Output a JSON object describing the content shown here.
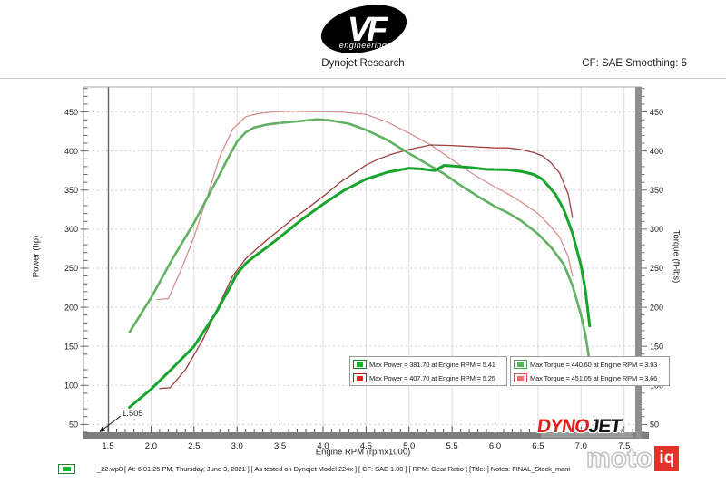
{
  "header": {
    "logo_text": "VF",
    "logo_sub": "engineering",
    "title": "Dynojet Research",
    "smoothing": "CF: SAE Smoothing: 5"
  },
  "chart_data": {
    "type": "line",
    "title": "",
    "xlabel": "Engine RPM (rpmx1000)",
    "ylabel_left": "Power (hp)",
    "ylabel_right": "Torque (ft-lbs)",
    "xlim": [
      1.215,
      7.63
    ],
    "ylim": [
      40,
      482
    ],
    "x_ticks": [
      1.5,
      2.0,
      2.5,
      3.0,
      3.5,
      4.0,
      4.5,
      5.0,
      5.5,
      6.0,
      6.5,
      7.0,
      7.5
    ],
    "x_tick_labels": [
      "1.5",
      "2.0",
      "2.5",
      "3.0",
      "3.5",
      "4.0",
      "4.5",
      "5.0",
      "5.5",
      "6.0",
      "6.5",
      "7.0",
      "7.5"
    ],
    "y_ticks": [
      50,
      100,
      150,
      200,
      250,
      300,
      350,
      400,
      450
    ],
    "y_tick_labels": [
      "50",
      "100",
      "150",
      "200",
      "250",
      "300",
      "350",
      "400",
      "450"
    ],
    "x_minor_step": 0.1,
    "y_minor_step": 10,
    "grid": true,
    "legend_position": "bottom-center",
    "annotation": {
      "label": "1.505",
      "rpm": 1.505
    },
    "series": [
      {
        "name": "power-green",
        "legend": "Max Power = 381.70 at Engine RPM = 5.41",
        "color": "#16a52c",
        "width": 3,
        "swatch": {
          "fill": "#0db82a",
          "border": "#0c8a1e"
        },
        "points": [
          [
            1.75,
            72
          ],
          [
            2.0,
            95
          ],
          [
            2.25,
            122
          ],
          [
            2.5,
            150
          ],
          [
            2.75,
            192
          ],
          [
            2.9,
            222
          ],
          [
            3.0,
            243
          ],
          [
            3.1,
            256
          ],
          [
            3.2,
            265
          ],
          [
            3.35,
            277
          ],
          [
            3.5,
            290
          ],
          [
            3.75,
            312
          ],
          [
            4.0,
            332
          ],
          [
            4.25,
            350
          ],
          [
            4.5,
            364
          ],
          [
            4.75,
            373
          ],
          [
            5.0,
            378
          ],
          [
            5.15,
            377
          ],
          [
            5.3,
            375
          ],
          [
            5.41,
            381.7
          ],
          [
            5.55,
            380.5
          ],
          [
            5.7,
            379
          ],
          [
            5.9,
            376.5
          ],
          [
            6.15,
            376
          ],
          [
            6.3,
            374
          ],
          [
            6.45,
            370
          ],
          [
            6.55,
            364
          ],
          [
            6.7,
            345
          ],
          [
            6.8,
            325
          ],
          [
            6.9,
            295
          ],
          [
            7.0,
            253
          ],
          [
            7.05,
            222
          ],
          [
            7.1,
            176
          ]
        ]
      },
      {
        "name": "power-red",
        "legend": "Max Power = 407.70 at Engine RPM = 5.25",
        "color": "#9c4040",
        "width": 1.3,
        "swatch": {
          "fill": "#e32222",
          "border": "#b01d1d"
        },
        "points": [
          [
            2.1,
            96
          ],
          [
            2.22,
            97
          ],
          [
            2.4,
            120
          ],
          [
            2.6,
            158
          ],
          [
            2.8,
            205
          ],
          [
            2.95,
            240
          ],
          [
            3.1,
            262
          ],
          [
            3.25,
            277
          ],
          [
            3.4,
            291
          ],
          [
            3.55,
            304
          ],
          [
            3.66,
            314
          ],
          [
            3.8,
            325
          ],
          [
            4.0,
            342
          ],
          [
            4.2,
            360
          ],
          [
            4.35,
            371
          ],
          [
            4.5,
            382
          ],
          [
            4.65,
            390
          ],
          [
            4.8,
            396
          ],
          [
            5.0,
            402
          ],
          [
            5.25,
            407.7
          ],
          [
            5.5,
            407
          ],
          [
            5.75,
            405.5
          ],
          [
            6.0,
            404
          ],
          [
            6.15,
            404
          ],
          [
            6.3,
            402
          ],
          [
            6.45,
            398
          ],
          [
            6.55,
            394
          ],
          [
            6.65,
            385
          ],
          [
            6.75,
            372
          ],
          [
            6.85,
            345
          ],
          [
            6.9,
            315
          ]
        ]
      },
      {
        "name": "torque-green",
        "legend": "Max Torque = 440.60 at Engine RPM = 3.93",
        "color": "#62b062",
        "width": 2.6,
        "swatch": {
          "fill": "#55b358",
          "border": "#4f9e52"
        },
        "points": [
          [
            1.75,
            168
          ],
          [
            2.0,
            212
          ],
          [
            2.25,
            262
          ],
          [
            2.5,
            308
          ],
          [
            2.75,
            360
          ],
          [
            2.9,
            392
          ],
          [
            3.0,
            412
          ],
          [
            3.1,
            424
          ],
          [
            3.2,
            430
          ],
          [
            3.35,
            434
          ],
          [
            3.5,
            436
          ],
          [
            3.75,
            438.5
          ],
          [
            3.93,
            440.6
          ],
          [
            4.1,
            439
          ],
          [
            4.3,
            435
          ],
          [
            4.5,
            427
          ],
          [
            4.75,
            414
          ],
          [
            5.0,
            397
          ],
          [
            5.25,
            381
          ],
          [
            5.41,
            370.6
          ],
          [
            5.6,
            356
          ],
          [
            5.8,
            342
          ],
          [
            6.0,
            329
          ],
          [
            6.15,
            321
          ],
          [
            6.3,
            311
          ],
          [
            6.5,
            294
          ],
          [
            6.65,
            277
          ],
          [
            6.8,
            255
          ],
          [
            6.9,
            228
          ],
          [
            7.0,
            190
          ],
          [
            7.05,
            165
          ],
          [
            7.1,
            130
          ]
        ]
      },
      {
        "name": "torque-pink",
        "legend": "Max Torque = 451.05 at Engine RPM = 3.66",
        "color": "#d89090",
        "width": 1.3,
        "swatch": {
          "fill": "#ef6a6a",
          "border": "#cc5555"
        },
        "points": [
          [
            2.07,
            210
          ],
          [
            2.2,
            211
          ],
          [
            2.35,
            248
          ],
          [
            2.5,
            290
          ],
          [
            2.65,
            340
          ],
          [
            2.8,
            393
          ],
          [
            2.95,
            428
          ],
          [
            3.1,
            444
          ],
          [
            3.25,
            448
          ],
          [
            3.4,
            450
          ],
          [
            3.66,
            451.05
          ],
          [
            3.9,
            450.5
          ],
          [
            4.2,
            450
          ],
          [
            4.5,
            447
          ],
          [
            4.75,
            437
          ],
          [
            5.0,
            423
          ],
          [
            5.25,
            408
          ],
          [
            5.5,
            389
          ],
          [
            5.75,
            370
          ],
          [
            6.0,
            354
          ],
          [
            6.15,
            345
          ],
          [
            6.3,
            335
          ],
          [
            6.5,
            320
          ],
          [
            6.65,
            303
          ],
          [
            6.75,
            290
          ],
          [
            6.85,
            265
          ],
          [
            6.9,
            240
          ]
        ]
      }
    ]
  },
  "branding": {
    "dynojet_part1": "DYNO",
    "dynojet_part2": "JET",
    "dynojet_reg": "®",
    "motoiq_part1": "moto",
    "motoiq_part2": "iq"
  },
  "footer": {
    "text": "_22.wp8 [ At: 6:01:25 PM, Thursday, June 3, 2021 ] [ As tested on Dynojet Model 224x ] [ CF: SAE 1.00 ] [ RPM: Gear Ratio ] [Title: ] Notes: FINAL_Stock_mani"
  }
}
